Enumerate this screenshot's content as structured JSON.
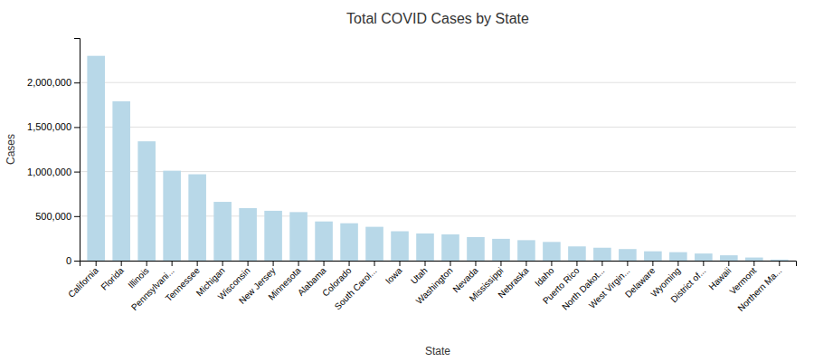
{
  "chart_data": {
    "type": "bar",
    "title": "Total COVID Cases by State",
    "xlabel": "State",
    "ylabel": "Cases",
    "categories": [
      "California",
      "Florida",
      "Illinois",
      "Pennsylvani...",
      "Tennessee",
      "Michigan",
      "Wisconsin",
      "New Jersey",
      "Minnesota",
      "Alabama",
      "Colorado",
      "South Carol...",
      "Iowa",
      "Utah",
      "Washington",
      "Nevada",
      "Mississippi",
      "Nebraska",
      "Idaho",
      "Puerto Rico",
      "North Dakot...",
      "West Virgin...",
      "Delaware",
      "Wyoming",
      "District of...",
      "Hawaii",
      "Vermont",
      "Northern Ma..."
    ],
    "values": [
      2300000,
      1790000,
      1340000,
      1010000,
      970000,
      660000,
      590000,
      560000,
      545000,
      440000,
      420000,
      380000,
      330000,
      305000,
      295000,
      265000,
      245000,
      230000,
      210000,
      160000,
      145000,
      130000,
      105000,
      95000,
      80000,
      60000,
      35000,
      12000
    ],
    "color": "#b8d8e8",
    "ylim": [
      0,
      2500000
    ],
    "yticks": [
      0,
      {
        "value": 500000,
        "label": "500,000"
      },
      {
        "value": 1000000,
        "label": "1,000,000"
      },
      {
        "value": 1500000,
        "label": "1,500,000"
      },
      {
        "value": 2000000,
        "label": "2,000,000"
      }
    ],
    "grid": true
  }
}
